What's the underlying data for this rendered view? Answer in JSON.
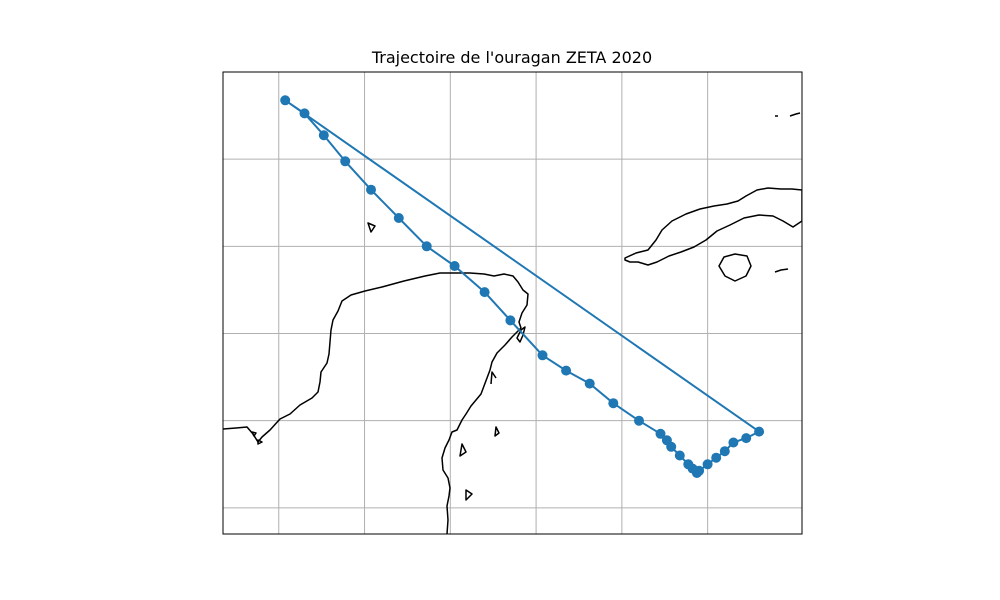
{
  "title": "Trajectoire de l'ouragan ZETA 2020",
  "colors": {
    "track": "#1f77b4",
    "coast": "#000000",
    "grid": "#b0b0b0"
  },
  "chart_data": {
    "type": "line",
    "title": "Trajectoire de l'ouragan ZETA 2020",
    "grid": true,
    "xlim": [
      -93.3,
      -79.8
    ],
    "ylim": [
      15.4,
      26.0
    ],
    "gridlines_lon": [
      -92,
      -90,
      -88,
      -86,
      -84,
      -82
    ],
    "gridlines_lat": [
      16,
      18,
      20,
      22,
      24
    ],
    "series": [
      {
        "marker": "circle",
        "lon": [
          -80.8,
          -81.1,
          -81.4,
          -81.6,
          -81.8,
          -82.0,
          -82.2,
          -82.25,
          -82.35,
          -82.45,
          -82.65,
          -82.85,
          -82.95,
          -83.1,
          -83.6,
          -84.2,
          -84.75,
          -85.3,
          -85.85,
          -86.6,
          -87.2,
          -87.9,
          -88.55,
          -89.2,
          -89.85,
          -90.45,
          -90.95,
          -91.4,
          -91.85
        ],
        "lat": [
          17.75,
          17.6,
          17.5,
          17.3,
          17.15,
          17.0,
          16.85,
          16.8,
          16.9,
          17.0,
          17.2,
          17.4,
          17.55,
          17.7,
          18.0,
          18.4,
          18.85,
          19.15,
          19.5,
          20.3,
          20.95,
          21.55,
          22.0,
          22.65,
          23.3,
          23.95,
          24.55,
          25.05,
          25.35
        ]
      }
    ]
  }
}
